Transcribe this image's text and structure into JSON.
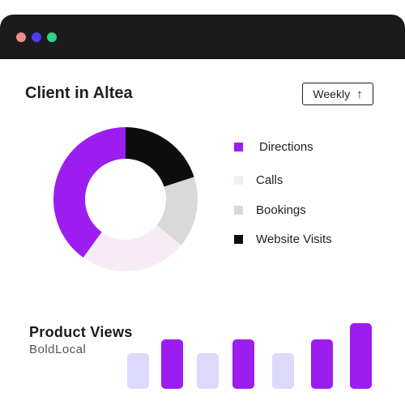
{
  "window": {
    "dots": [
      {
        "name": "close",
        "color": "#ef8a8a"
      },
      {
        "name": "minimize",
        "color": "#4d3df0"
      },
      {
        "name": "maximize",
        "color": "#2fd38a"
      }
    ]
  },
  "card": {
    "title": "Client in Altea",
    "period_button": {
      "label": "Weekly",
      "icon": "arrow-up-icon"
    }
  },
  "chart_data": [
    {
      "type": "pie",
      "title": "",
      "categories": [
        "Directions",
        "Calls",
        "Bookings",
        "Website Visits"
      ],
      "values": [
        40,
        24,
        16,
        20
      ],
      "colors": [
        "#9b1df0",
        "#f7ecf6",
        "#d9d9d9",
        "#0d0d0d"
      ],
      "legend": "right"
    },
    {
      "type": "bar",
      "title": "Product Views",
      "subtitle": "BoldLocal",
      "values": [
        38,
        55,
        38,
        55,
        38,
        55,
        75
      ],
      "colors": [
        "#dcd9fb",
        "#9b1df0",
        "#dcd9fb",
        "#9b1df0",
        "#dcd9fb",
        "#9b1df0",
        "#9b1df0"
      ]
    }
  ]
}
